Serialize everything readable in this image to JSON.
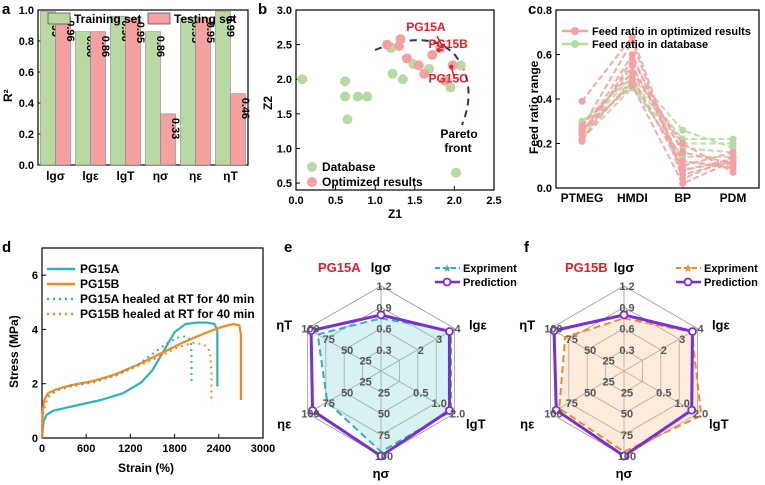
{
  "panels": {
    "a": "a",
    "b": "b",
    "c": "c",
    "d": "d",
    "e": "e",
    "f": "f"
  },
  "colors": {
    "green": "#b9d9a3",
    "pink": "#f6a0a2",
    "teal": "#2eb3b7",
    "orange": "#f08a24",
    "purple": "#7a2fd3",
    "red": "#e0202a",
    "grid": "#9a9a9a"
  },
  "chart_data": [
    {
      "id": "a",
      "type": "bar",
      "ylabel": "R²",
      "ylim": [
        0,
        1.0
      ],
      "yticks": [
        "0.0",
        "0.2",
        "0.4",
        "0.6",
        "0.8",
        "1.0"
      ],
      "categories": [
        "lgσ",
        "lgε",
        "lgT",
        "ησ",
        "ηε",
        "ηT"
      ],
      "series": [
        {
          "name": "Training set",
          "values": [
            0.99,
            0.86,
            0.96,
            0.86,
            0.95,
            0.99
          ],
          "labels": [
            "0.99",
            "0.86",
            "0.96",
            "0.86",
            "0.95",
            "0.99"
          ]
        },
        {
          "name": "Testing set",
          "values": [
            0.96,
            0.86,
            0.95,
            0.33,
            0.95,
            0.46
          ],
          "labels": [
            "0.96",
            "0.86",
            "0.95",
            "0.33",
            "0.95",
            "0.46"
          ]
        }
      ]
    },
    {
      "id": "b",
      "type": "scatter",
      "xlabel": "Z1",
      "ylabel": "Z2",
      "xlim": [
        0,
        2.5
      ],
      "ylim": [
        0.4,
        3.0
      ],
      "xticks": [
        "0.0",
        "0.5",
        "1.0",
        "1.5",
        "2.0",
        "2.5"
      ],
      "yticks": [
        "0.5",
        "1.0",
        "1.5",
        "2.0",
        "2.5",
        "3.0"
      ],
      "series": [
        {
          "name": "Database",
          "points": [
            [
              0.08,
              2.0
            ],
            [
              0.62,
              1.97
            ],
            [
              0.62,
              1.75
            ],
            [
              0.65,
              1.42
            ],
            [
              0.78,
              1.75
            ],
            [
              0.9,
              1.75
            ],
            [
              1.2,
              2.45
            ],
            [
              1.22,
              2.08
            ],
            [
              1.35,
              2.0
            ],
            [
              1.48,
              2.22
            ],
            [
              1.68,
              2.15
            ],
            [
              1.95,
              1.88
            ],
            [
              2.02,
              0.65
            ],
            [
              2.08,
              2.2
            ]
          ]
        },
        {
          "name": "Optimized results",
          "points": [
            [
              1.15,
              2.5
            ],
            [
              1.3,
              2.48
            ],
            [
              1.4,
              2.3
            ],
            [
              1.55,
              2.2
            ],
            [
              1.62,
              2.08
            ],
            [
              1.72,
              2.35
            ],
            [
              1.82,
              2.45
            ],
            [
              1.88,
              1.98
            ],
            [
              1.98,
              2.2
            ],
            [
              1.32,
              2.58
            ]
          ]
        }
      ],
      "annotations": [
        {
          "text": "PG15A",
          "x": 1.62,
          "y": 2.7
        },
        {
          "text": "PG15B",
          "x": 1.9,
          "y": 2.45
        },
        {
          "text": "PG15C",
          "x": 1.9,
          "y": 1.95
        },
        {
          "text": "Pareto",
          "x": 2.0,
          "y": 1.15
        },
        {
          "text": "front",
          "x": 2.05,
          "y": 0.95
        }
      ]
    },
    {
      "id": "c",
      "type": "line",
      "ylabel": "Feed ratio range",
      "ylim": [
        0,
        0.8
      ],
      "categories": [
        "PTMEG",
        "HMDI",
        "BP",
        "PDM"
      ],
      "yticks": [
        "0.0",
        "0.2",
        "0.4",
        "0.6",
        "0.8"
      ],
      "series": [
        {
          "name": "Feed ratio in optimized results",
          "lines": [
            [
              0.39,
              0.68,
              0.06,
              0.12
            ],
            [
              0.27,
              0.66,
              0.04,
              0.14
            ],
            [
              0.24,
              0.6,
              0.08,
              0.13
            ],
            [
              0.21,
              0.58,
              0.16,
              0.11
            ],
            [
              0.25,
              0.55,
              0.12,
              0.09
            ],
            [
              0.28,
              0.52,
              0.2,
              0.07
            ],
            [
              0.22,
              0.49,
              0.1,
              0.16
            ],
            [
              0.26,
              0.46,
              0.02,
              0.12
            ]
          ]
        },
        {
          "name": "Feed ratio in database",
          "lines": [
            [
              0.28,
              0.52,
              0.26,
              0.18
            ],
            [
              0.26,
              0.5,
              0.22,
              0.22
            ],
            [
              0.24,
              0.48,
              0.2,
              0.2
            ],
            [
              0.27,
              0.46,
              0.18,
              0.16
            ],
            [
              0.22,
              0.45,
              0.14,
              0.14
            ],
            [
              0.25,
              0.47,
              0.12,
              0.1
            ],
            [
              0.3,
              0.5,
              0.08,
              0.12
            ]
          ]
        }
      ]
    },
    {
      "id": "d",
      "type": "line",
      "xlabel": "Strain (%)",
      "ylabel": "Stress (MPa)",
      "xlim": [
        0,
        3000
      ],
      "ylim": [
        0,
        7
      ],
      "xticks": [
        "0",
        "600",
        "1200",
        "1800",
        "2400",
        "3000"
      ],
      "yticks": [
        "0",
        "2",
        "4",
        "6"
      ],
      "series": [
        {
          "name": "PG15A",
          "style": "solid",
          "color": "teal",
          "x": [
            0,
            20,
            60,
            150,
            300,
            500,
            800,
            1100,
            1350,
            1500,
            1650,
            1800,
            1950,
            2100,
            2250,
            2340,
            2380,
            2380
          ],
          "y": [
            0,
            0.6,
            0.85,
            1.0,
            1.1,
            1.22,
            1.4,
            1.65,
            2.05,
            2.5,
            3.2,
            3.9,
            4.2,
            4.25,
            4.25,
            4.2,
            4.0,
            1.9
          ]
        },
        {
          "name": "PG15B",
          "style": "solid",
          "color": "orange",
          "x": [
            0,
            10,
            30,
            80,
            200,
            400,
            700,
            1000,
            1300,
            1600,
            1900,
            2200,
            2450,
            2600,
            2680,
            2700,
            2700
          ],
          "y": [
            0,
            1.0,
            1.4,
            1.65,
            1.8,
            1.95,
            2.1,
            2.35,
            2.7,
            3.1,
            3.5,
            3.85,
            4.1,
            4.2,
            4.15,
            3.8,
            1.4
          ]
        },
        {
          "name": "PG15A healed at RT for 40 min",
          "style": "dotted",
          "color": "teal",
          "x": [
            0,
            20,
            80,
            200,
            400,
            700,
            1000,
            1300,
            1500,
            1700,
            1850,
            1960,
            2020,
            2030,
            2030
          ],
          "y": [
            0,
            1.0,
            1.5,
            1.75,
            1.9,
            2.05,
            2.3,
            2.7,
            3.1,
            3.5,
            3.7,
            3.75,
            3.6,
            3.1,
            2.0
          ]
        },
        {
          "name": "PG15B healed at RT for 40 min",
          "style": "dotted",
          "color": "orange",
          "x": [
            0,
            20,
            80,
            200,
            400,
            700,
            1000,
            1300,
            1600,
            1850,
            2050,
            2200,
            2280,
            2300,
            2300
          ],
          "y": [
            0,
            1.0,
            1.55,
            1.8,
            1.95,
            2.1,
            2.3,
            2.65,
            3.0,
            3.35,
            3.5,
            3.45,
            3.2,
            2.4,
            1.3
          ]
        }
      ]
    },
    {
      "id": "e",
      "type": "radar",
      "title": "PG15A",
      "axes": [
        "lgσ",
        "lgε",
        "lgT",
        "ησ",
        "ηε",
        "ηT"
      ],
      "ring_labels": [
        [
          "0.3",
          "0.6",
          "0.9",
          "1.2"
        ],
        [
          "2",
          "3",
          "4"
        ],
        [
          "0.5",
          "1.0",
          "2.0"
        ],
        [
          "25",
          "50",
          "75",
          "100"
        ],
        [
          "25",
          "50",
          "75",
          "100"
        ],
        [
          "25",
          "50",
          "75",
          "100"
        ]
      ],
      "series": [
        {
          "name": "Expriment",
          "style": "dashed",
          "color": "teal",
          "values": [
            0.62,
            0.95,
            0.95,
            0.95,
            0.73,
            0.86
          ]
        },
        {
          "name": "Prediction",
          "style": "solid",
          "color": "purple",
          "values": [
            0.66,
            0.93,
            0.93,
            1.0,
            0.93,
            0.95
          ]
        }
      ]
    },
    {
      "id": "f",
      "type": "radar",
      "title": "PG15B",
      "axes": [
        "lgσ",
        "lgε",
        "lgT",
        "ησ",
        "ηε",
        "ηT"
      ],
      "ring_labels": [
        [
          "0.3",
          "0.6",
          "0.9",
          "1.2"
        ],
        [
          "2",
          "3",
          "4"
        ],
        [
          "0.5",
          "1.0",
          "2.0"
        ],
        [
          "25",
          "50",
          "75",
          "100"
        ],
        [
          "25",
          "50",
          "75",
          "100"
        ],
        [
          "25",
          "50",
          "75",
          "100"
        ]
      ],
      "series": [
        {
          "name": "Expriment",
          "style": "dashed",
          "color": "orange",
          "values": [
            0.62,
            0.92,
            1.05,
            0.95,
            0.88,
            0.8
          ]
        },
        {
          "name": "Prediction",
          "style": "solid",
          "color": "purple",
          "values": [
            0.66,
            0.93,
            0.92,
            1.0,
            0.92,
            0.95
          ]
        }
      ]
    }
  ],
  "legends": {
    "a": [
      "Training set",
      "Testing set"
    ],
    "b": [
      "Database",
      "Optimized results"
    ],
    "c": [
      "Feed ratio in optimized results",
      "Feed ratio in database"
    ],
    "d": [
      "PG15A",
      "PG15B",
      "PG15A healed at RT for 40 min",
      "PG15B healed at RT for 40 min"
    ],
    "e": [
      "Expriment",
      "Prediction"
    ],
    "f": [
      "Expriment",
      "Prediction"
    ]
  }
}
